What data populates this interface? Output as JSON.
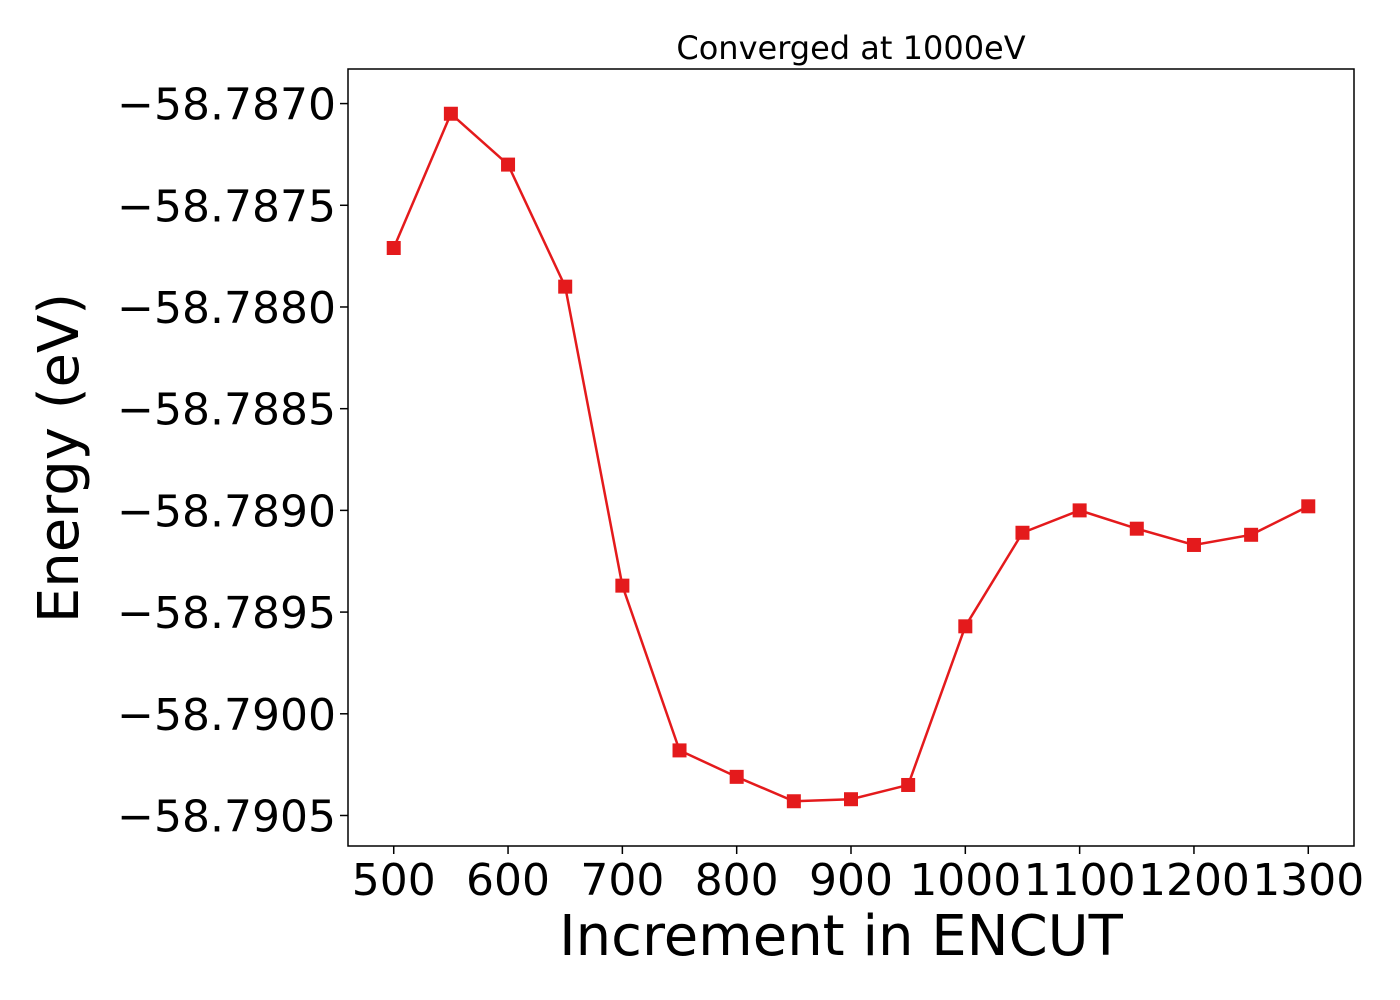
{
  "chart_data": {
    "type": "line",
    "title": "Converged at 1000eV",
    "xlabel": "Increment in ENCUT",
    "ylabel": "Energy (eV)",
    "x": [
      500,
      550,
      600,
      650,
      700,
      750,
      800,
      850,
      900,
      950,
      1000,
      1050,
      1100,
      1150,
      1200,
      1250,
      1300
    ],
    "series": [
      {
        "values": [
          -58.78771,
          -58.78705,
          -58.7873,
          -58.7879,
          -58.78937,
          -58.79018,
          -58.79031,
          -58.79043,
          -58.79042,
          -58.79035,
          -58.78957,
          -58.78911,
          -58.789,
          -58.78909,
          -58.78917,
          -58.78912,
          -58.78898
        ],
        "color": "#e41a1c",
        "marker": "square"
      }
    ],
    "xlim": [
      460,
      1340
    ],
    "ylim": [
      -58.79065,
      -58.78683
    ],
    "xticks": [
      500,
      600,
      700,
      800,
      900,
      1000,
      1100,
      1200,
      1300
    ],
    "xtick_labels": [
      "500",
      "600",
      "700",
      "800",
      "900",
      "1000",
      "1100",
      "1200",
      "1300"
    ],
    "yticks": [
      -58.787,
      -58.7875,
      -58.788,
      -58.7885,
      -58.789,
      -58.7895,
      -58.79,
      -58.7905
    ],
    "ytick_labels": [
      "−58.7870",
      "−58.7875",
      "−58.7880",
      "−58.7885",
      "−58.7890",
      "−58.7895",
      "−58.7900",
      "−58.7905"
    ],
    "grid": false,
    "legend": "none"
  }
}
